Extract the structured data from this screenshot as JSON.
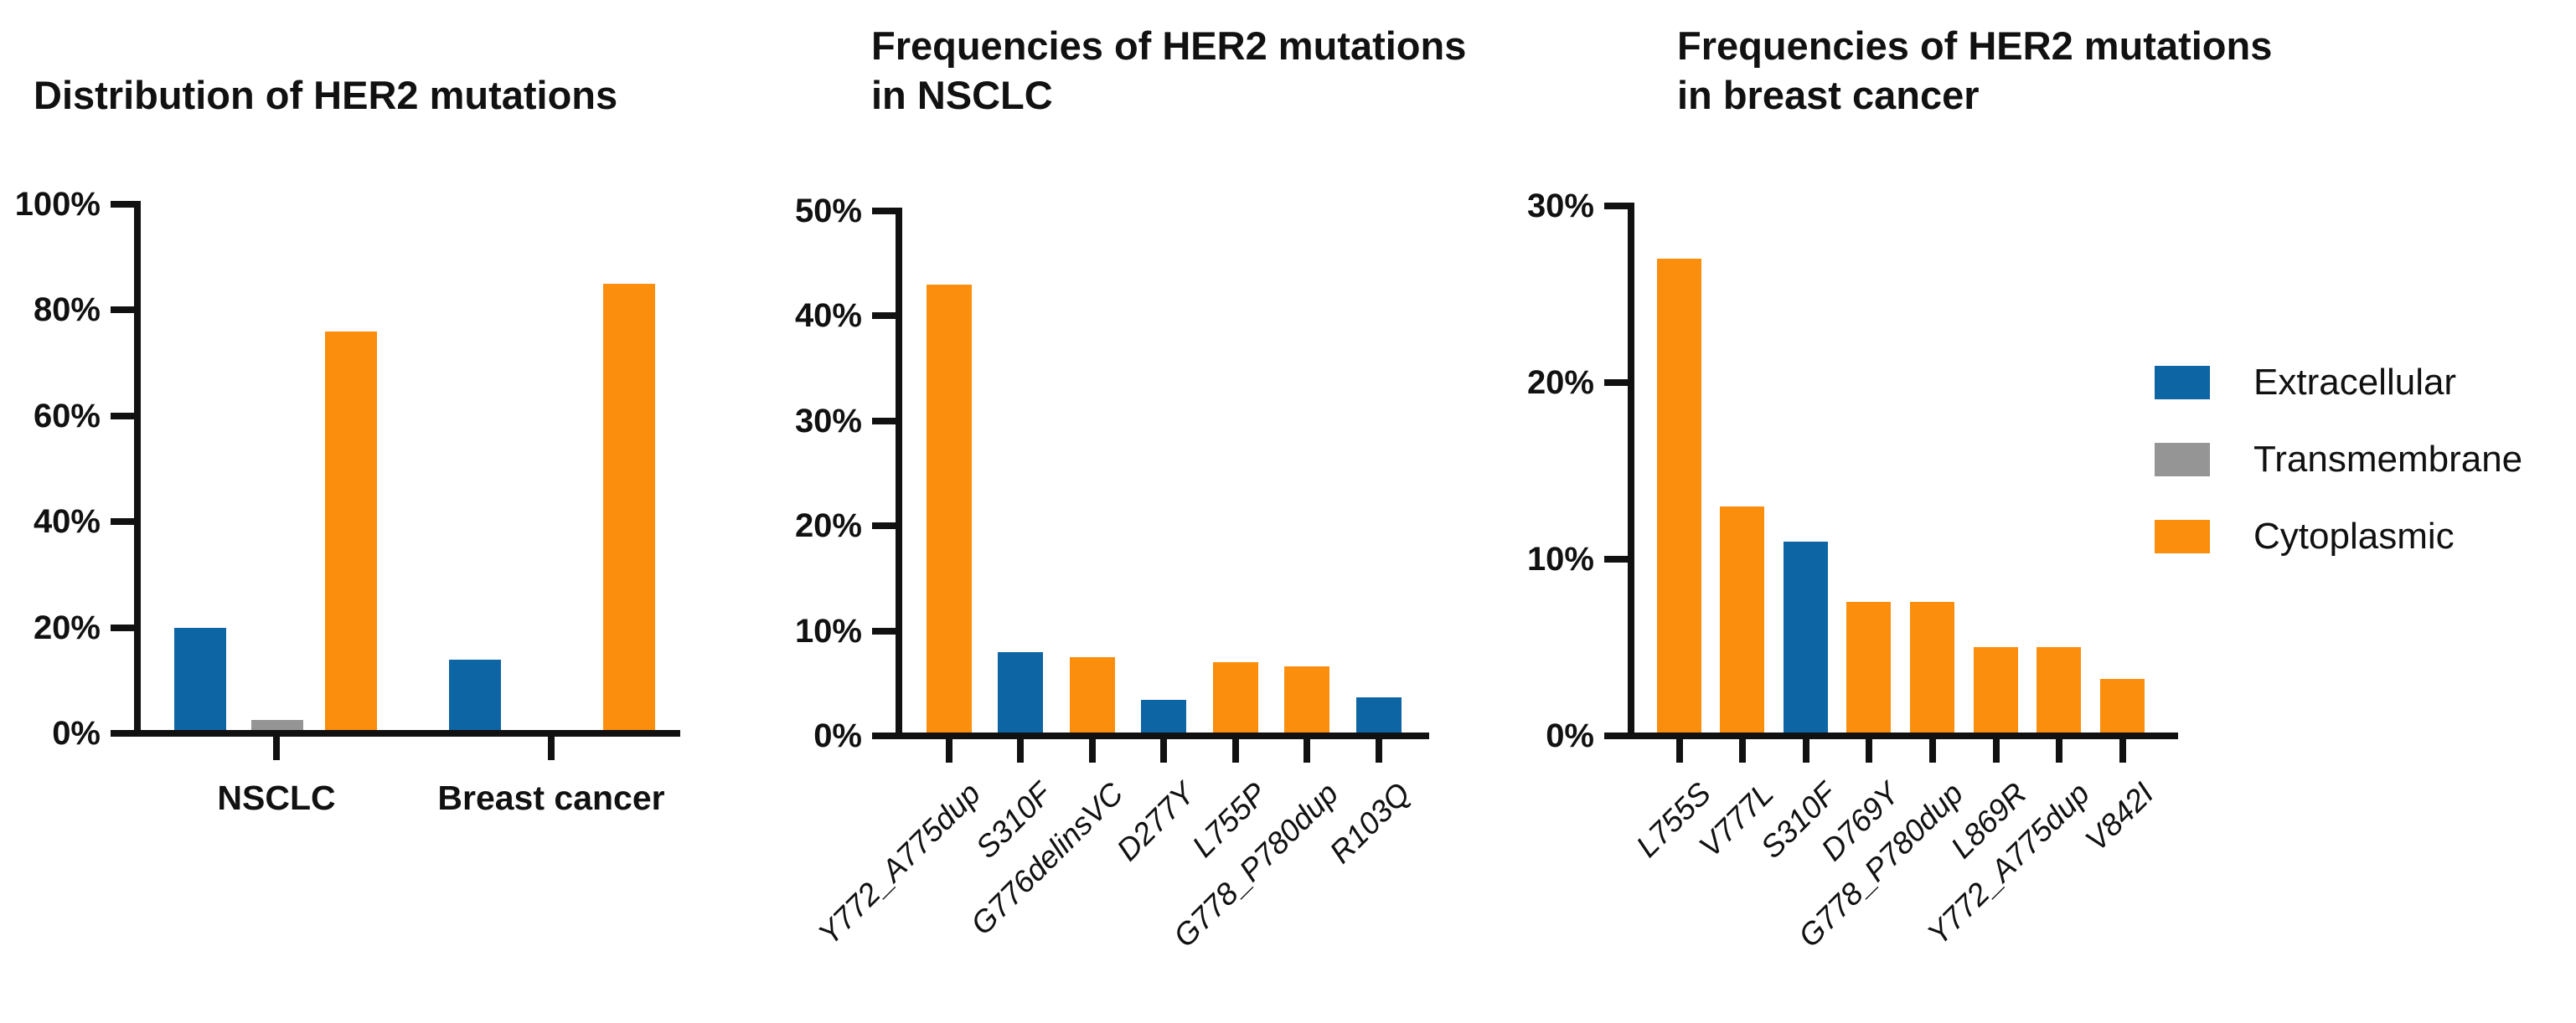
{
  "figure": {
    "background": "#ffffff",
    "text_color": "#111111"
  },
  "colors": {
    "extracellular": "#0E65A4",
    "transmembrane": "#959595",
    "cytoplasmic": "#FB8E0D",
    "axis": "#111111"
  },
  "legend": {
    "position": "right",
    "items": [
      {
        "label": "Extracellular",
        "color_key": "extracellular",
        "swatch_icon": "legend-swatch"
      },
      {
        "label": "Transmembrane",
        "color_key": "transmembrane",
        "swatch_icon": "legend-swatch"
      },
      {
        "label": "Cytoplasmic",
        "color_key": "cytoplasmic",
        "swatch_icon": "legend-swatch"
      }
    ]
  },
  "chart_data": [
    {
      "type": "bar",
      "title": "Distribution of HER2 mutations",
      "title_lines": [
        "Distribution of HER2 mutations"
      ],
      "xlabel": "",
      "ylabel": "",
      "ylim": [
        0,
        100
      ],
      "ytick_step": 20,
      "yticks": [
        "0%",
        "20%",
        "40%",
        "60%",
        "80%",
        "100%"
      ],
      "grid": false,
      "legend_position": "shared-right",
      "categories": [
        "NSCLC",
        "Breast cancer"
      ],
      "series": [
        {
          "name": "Extracellular",
          "color_key": "extracellular",
          "values": [
            20,
            14
          ]
        },
        {
          "name": "Transmembrane",
          "color_key": "transmembrane",
          "values": [
            2.5,
            0.5
          ]
        },
        {
          "name": "Cytoplasmic",
          "color_key": "cytoplasmic",
          "values": [
            76,
            85
          ]
        }
      ]
    },
    {
      "type": "bar",
      "title": "Frequencies of HER2 mutations in NSCLC",
      "title_lines": [
        "Frequencies of HER2 mutations",
        "in NSCLC"
      ],
      "xlabel": "",
      "ylabel": "",
      "ylim": [
        0,
        50
      ],
      "ytick_step": 10,
      "yticks": [
        "0%",
        "10%",
        "20%",
        "30%",
        "40%",
        "50%"
      ],
      "grid": false,
      "legend_position": "shared-right",
      "x_label_rotation": -45,
      "categories": [
        "Y772_A775dup",
        "S310F",
        "G776delinsVC",
        "D277Y",
        "L755P",
        "G778_P780dup",
        "R103Q"
      ],
      "values": [
        43,
        8,
        7.5,
        3.4,
        7,
        6.6,
        3.7
      ],
      "domains": [
        "cytoplasmic",
        "extracellular",
        "cytoplasmic",
        "extracellular",
        "cytoplasmic",
        "cytoplasmic",
        "extracellular"
      ]
    },
    {
      "type": "bar",
      "title": "Frequencies of HER2 mutations in breast cancer",
      "title_lines": [
        "Frequencies of HER2 mutations",
        "in breast cancer"
      ],
      "xlabel": "",
      "ylabel": "",
      "ylim": [
        0,
        30
      ],
      "ytick_step": 10,
      "yticks": [
        "0%",
        "10%",
        "20%",
        "30%"
      ],
      "grid": false,
      "legend_position": "shared-right",
      "x_label_rotation": -45,
      "categories": [
        "L755S",
        "V777L",
        "S310F",
        "D769Y",
        "G778_P780dup",
        "L869R",
        "Y772_A775dup",
        "V842I"
      ],
      "values": [
        27,
        13,
        11,
        7.6,
        7.6,
        5,
        5,
        3.2
      ],
      "domains": [
        "cytoplasmic",
        "cytoplasmic",
        "extracellular",
        "cytoplasmic",
        "cytoplasmic",
        "cytoplasmic",
        "cytoplasmic",
        "cytoplasmic"
      ]
    }
  ]
}
